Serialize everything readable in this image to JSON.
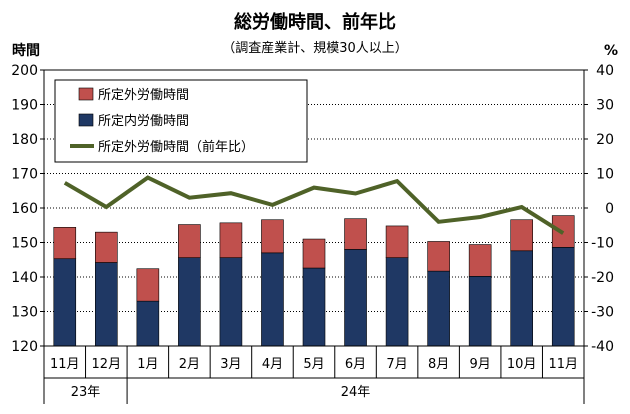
{
  "chart_data": {
    "type": "bar",
    "title": "総労働時間、前年比",
    "subtitle": "（調査産業計、規模30人以上）",
    "left_unit": "時間",
    "right_unit": "%",
    "categories": [
      "11月",
      "12月",
      "1月",
      "2月",
      "3月",
      "4月",
      "5月",
      "6月",
      "7月",
      "8月",
      "9月",
      "10月",
      "11月"
    ],
    "year_groups": [
      {
        "label": "23年",
        "span": [
          0,
          1
        ]
      },
      {
        "label": "24年",
        "span": [
          2,
          12
        ]
      }
    ],
    "y_left": {
      "min": 120,
      "max": 200,
      "step": 10,
      "ticks": [
        "120",
        "130",
        "140",
        "150",
        "160",
        "170",
        "180",
        "190",
        "200"
      ]
    },
    "y_right": {
      "min": -40,
      "max": 40,
      "step": 10,
      "ticks": [
        "-40",
        "-30",
        "-20",
        "-10",
        "0",
        "10",
        "20",
        "30",
        "40"
      ]
    },
    "series": [
      {
        "name": "所定内労働時間",
        "kind": "bar-bottom",
        "color": "#1f3864",
        "values": [
          145.3,
          144.2,
          133.0,
          145.6,
          145.6,
          147.0,
          142.6,
          148.0,
          145.6,
          141.7,
          140.2,
          147.6,
          148.6
        ]
      },
      {
        "name": "所定外労働時間",
        "kind": "bar-top",
        "color": "#c0504d",
        "values": [
          9.1,
          8.8,
          9.4,
          9.6,
          10.1,
          9.6,
          8.4,
          8.9,
          9.2,
          8.6,
          9.2,
          9.0,
          9.2
        ]
      },
      {
        "name": "所定外労働時間（前年比）",
        "kind": "line",
        "axis": "right",
        "color": "#4f6228",
        "values": [
          7.3,
          0.3,
          8.8,
          3.0,
          4.3,
          0.9,
          5.9,
          4.2,
          7.8,
          -4.0,
          -2.6,
          0.3,
          -7.3
        ]
      }
    ],
    "legend": {
      "position": "top-left",
      "order": [
        1,
        0,
        2
      ]
    },
    "grid": {
      "horizontal": true,
      "style": "dotted"
    }
  }
}
